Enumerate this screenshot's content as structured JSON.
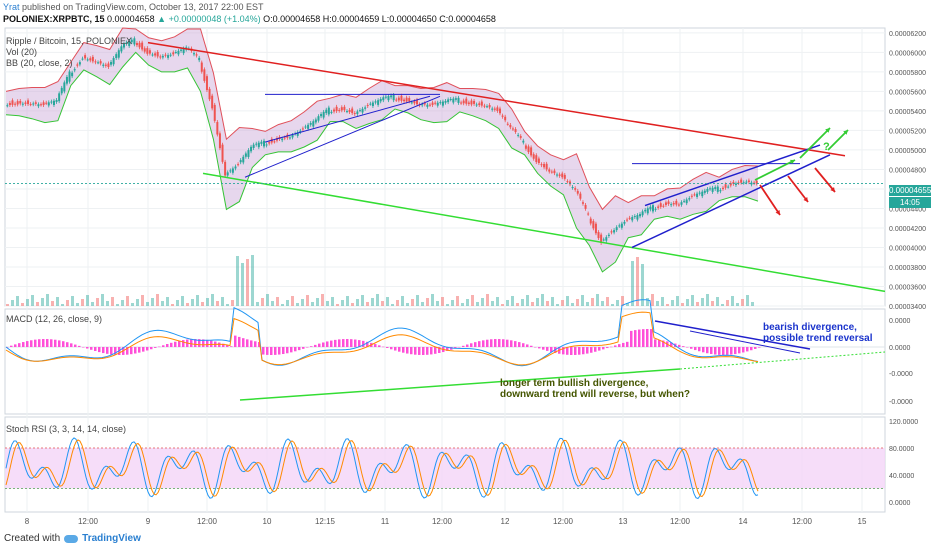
{
  "header": {
    "author": "Yrat",
    "published": "published on TradingView.com, October 13, 2017 22:00 EST",
    "symbol": "POLONIEX:XRPBTC, 15",
    "price": "0.00004658",
    "change_sign": "▲",
    "change": "+0.00000048 (+1.04%)",
    "ohlc": "O:0.00004658 H:0.00004659 L:0.00004650 C:0.00004658"
  },
  "indicators": {
    "title": "Ripple / Bitcoin, 15, POLONIEX",
    "vol": "Vol (20)",
    "bb": "BB (20, close, 2)",
    "macd": "MACD (12, 26, close, 9)",
    "rsi": "Stoch RSI (3, 3, 14, 14, close)"
  },
  "price_tags": {
    "last": "0.00004655",
    "countdown": "14:05"
  },
  "annotations": {
    "bearish_1": "bearish divergence,",
    "bearish_2": "possible trend reversal",
    "bullish_1": "longer term bullish divergence,",
    "bullish_2": "downward trend will reverse, but when?",
    "question": "?"
  },
  "footer": {
    "created_with": "Created with",
    "brand": "TradingView"
  },
  "colors": {
    "bb_fill": "#c9a6d6",
    "bb_upper": "#e0505a",
    "bb_lower": "#35c435",
    "candle_up": "#26a69a",
    "candle_down": "#ef5350",
    "trend_red": "#e02020",
    "trend_green": "#33dd33",
    "wedge_blue": "#2020cc",
    "arrow_green": "#33cc33",
    "macd_line": "#2196f3",
    "signal_line": "#ff8a00",
    "hist": "#ff4fd8",
    "rsi_fill": "#f4d4f8",
    "rsi_k": "#2196f3",
    "rsi_d": "#ff8a00",
    "annotation_blue": "#1a33cc",
    "annotation_olive": "#445500",
    "price_tag_green": "#26a69a"
  },
  "chart_data": [
    {
      "type": "candlestick",
      "name": "Ripple / Bitcoin",
      "y_axis_ticks": [
        "0.00006200",
        "0.00006000",
        "0.00005800",
        "0.00005600",
        "0.00005400",
        "0.00005200",
        "0.00005000",
        "0.00004800",
        "0.00004600",
        "0.00004400",
        "0.00004200",
        "0.00004000",
        "0.00003800",
        "0.00003600",
        "0.00003400"
      ],
      "x_axis_ticks": [
        "8",
        "12:00",
        "9",
        "12:00",
        "10",
        "12:15",
        "11",
        "12:00",
        "12",
        "12:00",
        "13",
        "12:00",
        "14",
        "12:00",
        "15"
      ],
      "ylim": [
        3.4e-05,
        6.25e-05
      ],
      "last_price": 4.655e-05,
      "close_path": [
        [
          0,
          5.48e-05
        ],
        [
          1,
          5.49e-05
        ],
        [
          2,
          5.48e-05
        ],
        [
          3,
          5.46e-05
        ],
        [
          4,
          5.5e-05
        ],
        [
          5,
          5.78e-05
        ],
        [
          6,
          5.96e-05
        ],
        [
          7,
          5.91e-05
        ],
        [
          8,
          5.85e-05
        ],
        [
          9,
          6.05e-05
        ],
        [
          10,
          6.12e-05
        ],
        [
          11,
          6.01e-05
        ],
        [
          12,
          5.96e-05
        ],
        [
          13,
          5.98e-05
        ],
        [
          14,
          6.04e-05
        ],
        [
          15,
          5.92e-05
        ],
        [
          16,
          5.45e-05
        ],
        [
          17,
          4.75e-05
        ],
        [
          18,
          4.85e-05
        ],
        [
          19,
          5.02e-05
        ],
        [
          20,
          5.07e-05
        ],
        [
          21,
          5.12e-05
        ],
        [
          22,
          5.14e-05
        ],
        [
          23,
          5.21e-05
        ],
        [
          24,
          5.3e-05
        ],
        [
          25,
          5.41e-05
        ],
        [
          26,
          5.43e-05
        ],
        [
          27,
          5.38e-05
        ],
        [
          28,
          5.45e-05
        ],
        [
          29,
          5.51e-05
        ],
        [
          30,
          5.54e-05
        ],
        [
          31,
          5.52e-05
        ],
        [
          32,
          5.47e-05
        ],
        [
          33,
          5.46e-05
        ],
        [
          34,
          5.49e-05
        ],
        [
          35,
          5.51e-05
        ],
        [
          36,
          5.49e-05
        ],
        [
          37,
          5.46e-05
        ],
        [
          38,
          5.4e-05
        ],
        [
          39,
          5.22e-05
        ],
        [
          40,
          5.07e-05
        ],
        [
          41,
          4.9e-05
        ],
        [
          42,
          4.79e-05
        ],
        [
          43,
          4.72e-05
        ],
        [
          44,
          4.58e-05
        ],
        [
          45,
          4.32e-05
        ],
        [
          46,
          4.07e-05
        ],
        [
          47,
          4.19e-05
        ],
        [
          48,
          4.28e-05
        ],
        [
          49,
          4.33e-05
        ],
        [
          50,
          4.41e-05
        ],
        [
          51,
          4.46e-05
        ],
        [
          52,
          4.45e-05
        ],
        [
          53,
          4.52e-05
        ],
        [
          54,
          4.57e-05
        ],
        [
          55,
          4.6e-05
        ],
        [
          56,
          4.66e-05
        ],
        [
          57,
          4.68e-05
        ],
        [
          58,
          4.655e-05
        ]
      ],
      "lines": [
        {
          "name": "red descending trendline",
          "from": [
            6.1e-05,
            "9"
          ],
          "to": [
            4.94e-05,
            "15"
          ]
        },
        {
          "name": "green descending trendline",
          "from": [
            4.76e-05,
            "9"
          ],
          "to": [
            3.55e-05,
            "15"
          ]
        }
      ]
    },
    {
      "type": "histogram",
      "name": "MACD (12, 26, close, 9)",
      "y_axis_ticks": [
        "0.0000",
        "0.0000",
        "-0.0000",
        "-0.0000"
      ]
    },
    {
      "type": "line",
      "name": "Stoch RSI (3, 3, 14, 14, close)",
      "y_axis_ticks": [
        "120.0000",
        "80.0000",
        "40.0000",
        "0.0000"
      ],
      "ylim": [
        0,
        120
      ],
      "bands": [
        20,
        80
      ]
    }
  ]
}
